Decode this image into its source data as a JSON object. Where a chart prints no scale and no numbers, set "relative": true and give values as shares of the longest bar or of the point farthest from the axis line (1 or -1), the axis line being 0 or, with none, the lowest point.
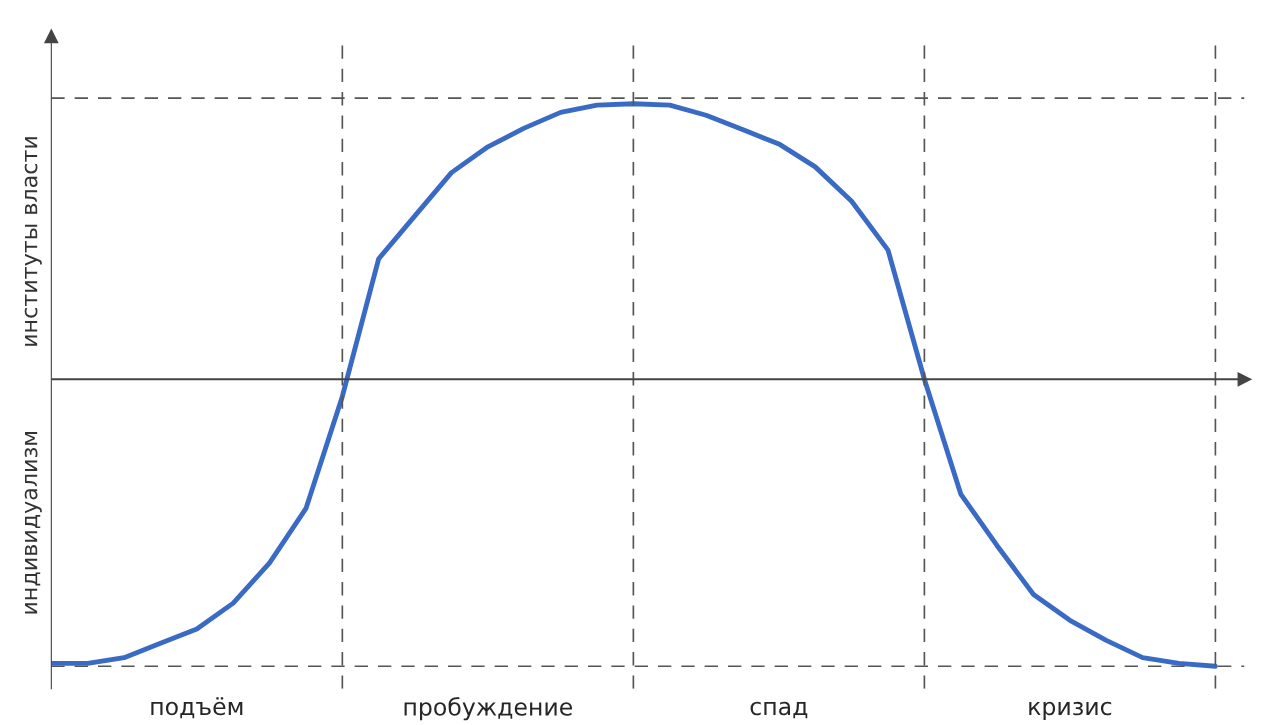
{
  "chart_data": {
    "type": "line",
    "relative": true,
    "categories": [
      null,
      null,
      null,
      null,
      "подъём",
      null,
      null,
      null,
      null,
      null,
      null,
      null,
      "пробуждение",
      null,
      null,
      null,
      null,
      null,
      null,
      null,
      "спад",
      null,
      null,
      null,
      null,
      null,
      null,
      null,
      "кризис",
      null,
      null,
      null,
      null
    ],
    "series": [
      {
        "color": "#3a6bc4",
        "values": [
          -0.99,
          -0.99,
          -0.97,
          -0.92,
          -0.87,
          -0.78,
          -0.64,
          -0.45,
          -0.06,
          0.42,
          0.57,
          0.72,
          0.81,
          0.875,
          0.93,
          0.955,
          0.96,
          0.955,
          0.92,
          0.87,
          0.82,
          0.74,
          0.62,
          0.45,
          0,
          -0.4,
          -0.58,
          -0.75,
          -0.84,
          -0.91,
          -0.97,
          -0.99,
          -1
        ]
      }
    ],
    "annotations": [
      "индивидуализм",
      "институты власти"
    ],
    "grid": true,
    "legend": false,
    "marker": "none",
    "line_style": "solid"
  }
}
